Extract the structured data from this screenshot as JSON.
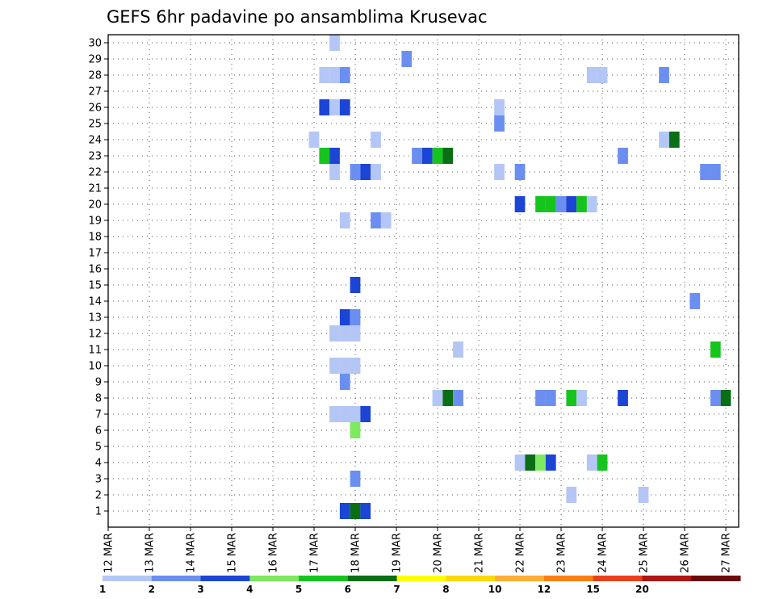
{
  "chart_data": {
    "type": "heatmap",
    "title": "GEFS 6hr padavine po ansamblima Krusevac",
    "xlabel": "",
    "ylabel": "",
    "time_steps": 62,
    "x_ticks": [
      {
        "step": 0,
        "label": "12 MAR"
      },
      {
        "step": 4,
        "label": "13 MAR"
      },
      {
        "step": 8,
        "label": "14 MAR"
      },
      {
        "step": 12,
        "label": "15 MAR"
      },
      {
        "step": 16,
        "label": "16 MAR"
      },
      {
        "step": 20,
        "label": "17 MAR"
      },
      {
        "step": 24,
        "label": "18 MAR"
      },
      {
        "step": 28,
        "label": "19 MAR"
      },
      {
        "step": 32,
        "label": "20 MAR"
      },
      {
        "step": 36,
        "label": "21 MAR"
      },
      {
        "step": 40,
        "label": "22 MAR"
      },
      {
        "step": 44,
        "label": "23 MAR"
      },
      {
        "step": 48,
        "label": "24 MAR"
      },
      {
        "step": 52,
        "label": "25 MAR"
      },
      {
        "step": 56,
        "label": "26 MAR"
      },
      {
        "step": 60,
        "label": "27 MAR"
      }
    ],
    "members": [
      "1",
      "2",
      "3",
      "4",
      "5",
      "6",
      "7",
      "8",
      "9",
      "10",
      "11",
      "12",
      "13",
      "14",
      "15",
      "16",
      "17",
      "18",
      "19",
      "20",
      "21",
      "22",
      "23",
      "24",
      "25",
      "26",
      "27",
      "28",
      "29",
      "30"
    ],
    "legend": {
      "colors": [
        "#b3c6f5",
        "#6b8ff0",
        "#1c45d6",
        "#7ee85e",
        "#16c41d",
        "#0a6e14",
        "#ffff00",
        "#ffd700",
        "#ffad33",
        "#ff7f10",
        "#e8401a",
        "#b01515",
        "#6a0a0a"
      ],
      "labels": [
        "1",
        "2",
        "3",
        "4",
        "5",
        "6",
        "7",
        "8",
        "10",
        "12",
        "15",
        "20"
      ]
    },
    "cells": [
      {
        "m": 30,
        "t": 22,
        "c": 0
      },
      {
        "m": 29,
        "t": 29,
        "c": 1
      },
      {
        "m": 28,
        "t": 21,
        "c": 0
      },
      {
        "m": 28,
        "t": 22,
        "c": 0
      },
      {
        "m": 28,
        "t": 23,
        "c": 1
      },
      {
        "m": 28,
        "t": 47,
        "c": 0
      },
      {
        "m": 28,
        "t": 48,
        "c": 0
      },
      {
        "m": 28,
        "t": 54,
        "c": 1
      },
      {
        "m": 26,
        "t": 21,
        "c": 2
      },
      {
        "m": 26,
        "t": 22,
        "c": 0
      },
      {
        "m": 26,
        "t": 23,
        "c": 2
      },
      {
        "m": 26,
        "t": 38,
        "c": 0
      },
      {
        "m": 25,
        "t": 38,
        "c": 1
      },
      {
        "m": 24,
        "t": 20,
        "c": 0
      },
      {
        "m": 24,
        "t": 26,
        "c": 0
      },
      {
        "m": 24,
        "t": 54,
        "c": 0
      },
      {
        "m": 24,
        "t": 55,
        "c": 5
      },
      {
        "m": 23,
        "t": 21,
        "c": 4
      },
      {
        "m": 23,
        "t": 22,
        "c": 2
      },
      {
        "m": 23,
        "t": 30,
        "c": 1
      },
      {
        "m": 23,
        "t": 31,
        "c": 2
      },
      {
        "m": 23,
        "t": 32,
        "c": 4
      },
      {
        "m": 23,
        "t": 33,
        "c": 5
      },
      {
        "m": 23,
        "t": 50,
        "c": 1
      },
      {
        "m": 22,
        "t": 22,
        "c": 0
      },
      {
        "m": 22,
        "t": 24,
        "c": 1
      },
      {
        "m": 22,
        "t": 25,
        "c": 2
      },
      {
        "m": 22,
        "t": 26,
        "c": 0
      },
      {
        "m": 22,
        "t": 38,
        "c": 0
      },
      {
        "m": 22,
        "t": 40,
        "c": 1
      },
      {
        "m": 22,
        "t": 58,
        "c": 1
      },
      {
        "m": 22,
        "t": 59,
        "c": 1
      },
      {
        "m": 20,
        "t": 40,
        "c": 2
      },
      {
        "m": 20,
        "t": 42,
        "c": 4
      },
      {
        "m": 20,
        "t": 43,
        "c": 4
      },
      {
        "m": 20,
        "t": 44,
        "c": 1
      },
      {
        "m": 20,
        "t": 45,
        "c": 2
      },
      {
        "m": 20,
        "t": 46,
        "c": 4
      },
      {
        "m": 20,
        "t": 47,
        "c": 0
      },
      {
        "m": 19,
        "t": 23,
        "c": 0
      },
      {
        "m": 19,
        "t": 26,
        "c": 1
      },
      {
        "m": 19,
        "t": 27,
        "c": 0
      },
      {
        "m": 15,
        "t": 24,
        "c": 2
      },
      {
        "m": 14,
        "t": 57,
        "c": 1
      },
      {
        "m": 13,
        "t": 23,
        "c": 2
      },
      {
        "m": 13,
        "t": 24,
        "c": 1
      },
      {
        "m": 12,
        "t": 22,
        "c": 0
      },
      {
        "m": 12,
        "t": 23,
        "c": 0
      },
      {
        "m": 12,
        "t": 24,
        "c": 0
      },
      {
        "m": 11,
        "t": 34,
        "c": 0
      },
      {
        "m": 11,
        "t": 59,
        "c": 4
      },
      {
        "m": 10,
        "t": 22,
        "c": 0
      },
      {
        "m": 10,
        "t": 23,
        "c": 0
      },
      {
        "m": 10,
        "t": 24,
        "c": 0
      },
      {
        "m": 9,
        "t": 23,
        "c": 1
      },
      {
        "m": 8,
        "t": 32,
        "c": 0
      },
      {
        "m": 8,
        "t": 33,
        "c": 5
      },
      {
        "m": 8,
        "t": 34,
        "c": 1
      },
      {
        "m": 8,
        "t": 42,
        "c": 1
      },
      {
        "m": 8,
        "t": 43,
        "c": 1
      },
      {
        "m": 8,
        "t": 45,
        "c": 4
      },
      {
        "m": 8,
        "t": 46,
        "c": 0
      },
      {
        "m": 8,
        "t": 50,
        "c": 2
      },
      {
        "m": 8,
        "t": 59,
        "c": 1
      },
      {
        "m": 8,
        "t": 60,
        "c": 5
      },
      {
        "m": 7,
        "t": 22,
        "c": 0
      },
      {
        "m": 7,
        "t": 23,
        "c": 0
      },
      {
        "m": 7,
        "t": 24,
        "c": 0
      },
      {
        "m": 7,
        "t": 25,
        "c": 2
      },
      {
        "m": 6,
        "t": 24,
        "c": 3
      },
      {
        "m": 4,
        "t": 40,
        "c": 0
      },
      {
        "m": 4,
        "t": 41,
        "c": 5
      },
      {
        "m": 4,
        "t": 42,
        "c": 3
      },
      {
        "m": 4,
        "t": 43,
        "c": 2
      },
      {
        "m": 4,
        "t": 47,
        "c": 0
      },
      {
        "m": 4,
        "t": 48,
        "c": 4
      },
      {
        "m": 3,
        "t": 24,
        "c": 1
      },
      {
        "m": 2,
        "t": 45,
        "c": 0
      },
      {
        "m": 2,
        "t": 52,
        "c": 0
      },
      {
        "m": 1,
        "t": 23,
        "c": 2
      },
      {
        "m": 1,
        "t": 24,
        "c": 5
      },
      {
        "m": 1,
        "t": 25,
        "c": 2
      }
    ]
  }
}
